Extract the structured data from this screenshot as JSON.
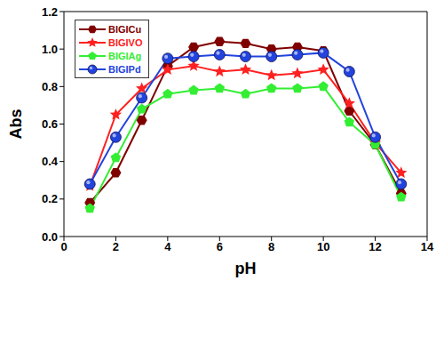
{
  "chart_data": {
    "type": "line",
    "x_label": "pH",
    "y_label": "Abs",
    "x": [
      1,
      2,
      3,
      4,
      5,
      6,
      7,
      8,
      9,
      10,
      11,
      12,
      13
    ],
    "xlim": [
      0,
      14
    ],
    "xticks": [
      0,
      2,
      4,
      6,
      8,
      10,
      12,
      14
    ],
    "ylim": [
      0,
      1.2
    ],
    "yticks": [
      {
        "value": 0,
        "label": "0.0"
      },
      {
        "value": 0.2,
        "label": "0.2"
      },
      {
        "value": 0.4,
        "label": "0.4"
      },
      {
        "value": 0.6,
        "label": "0.6"
      },
      {
        "value": 0.8,
        "label": "0.8"
      },
      {
        "value": 1.0,
        "label": "1.0"
      },
      {
        "value": 1.2,
        "label": "1.2"
      }
    ],
    "legend": "upper left",
    "series": [
      {
        "name": "BIGICu",
        "color": "#800000",
        "marker": "hexagon",
        "values": [
          0.18,
          0.34,
          0.62,
          0.91,
          1.01,
          1.04,
          1.03,
          1.0,
          1.01,
          0.99,
          0.67,
          0.49,
          0.23
        ]
      },
      {
        "name": "BIGIVO",
        "color": "#ff2020",
        "marker": "star",
        "values": [
          0.27,
          0.65,
          0.79,
          0.89,
          0.91,
          0.88,
          0.89,
          0.86,
          0.87,
          0.89,
          0.71,
          0.5,
          0.34
        ]
      },
      {
        "name": "BIGIAg",
        "color": "#33ee33",
        "marker": "pentagon",
        "values": [
          0.15,
          0.42,
          0.68,
          0.76,
          0.78,
          0.79,
          0.76,
          0.79,
          0.79,
          0.8,
          0.61,
          0.49,
          0.21
        ]
      },
      {
        "name": "BIGIPd",
        "color": "#2244dd",
        "marker": "circle",
        "values": [
          0.28,
          0.53,
          0.74,
          0.95,
          0.96,
          0.97,
          0.96,
          0.96,
          0.97,
          0.98,
          0.88,
          0.53,
          0.28
        ]
      }
    ]
  }
}
